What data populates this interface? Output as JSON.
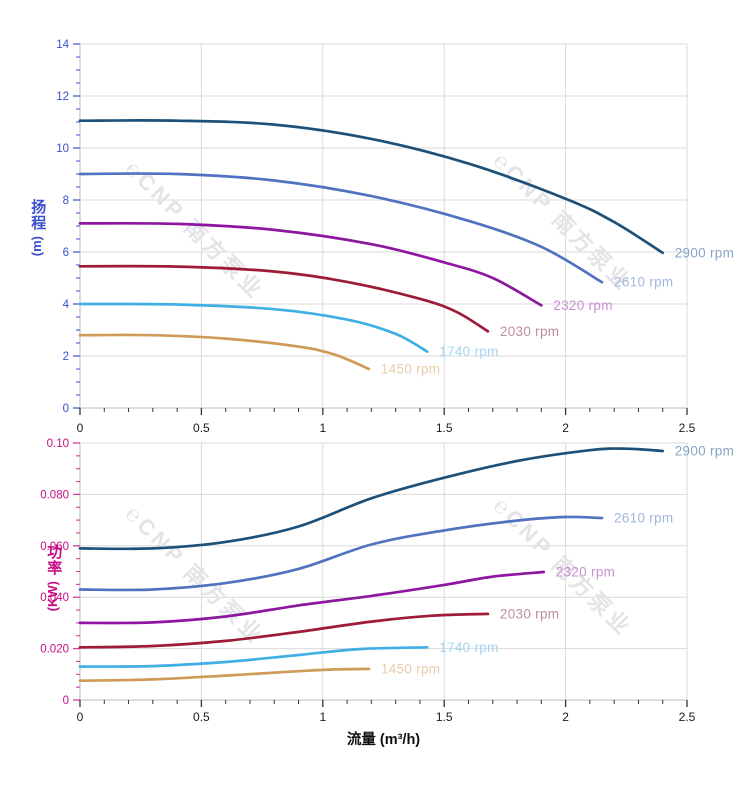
{
  "x_axis_title": "流量 (m³/h)",
  "watermark": {
    "symbol": "℮",
    "text": "CNP 南方泵业",
    "color": "#e4e4e8"
  },
  "chart_data": [
    {
      "type": "line",
      "title": "",
      "ylabel": "扬程",
      "ylabel_unit": "(m)",
      "xlabel": "流量 (m³/h)",
      "x_range": [
        0,
        2.5
      ],
      "y_range": [
        0,
        14
      ],
      "x_major": 0.5,
      "x_minor": 0.1,
      "y_major": 2,
      "y_minor": 0.5,
      "grid": true,
      "legend_position": "line-end-labels",
      "x_tick_labels": [
        "0",
        "0.5",
        "1",
        "1.5",
        "2",
        "2.5"
      ],
      "y_tick_labels": [
        "0",
        "2",
        "4",
        "6",
        "8",
        "10",
        "12",
        "14"
      ],
      "colors": {
        "y_label": "#3b50ce",
        "y_tick": "#4a5ed0",
        "x_label": "#1a1a1a",
        "x_tick": "#333333",
        "grid": "#d9d9d9",
        "spine": "#c6c6c6"
      },
      "series": [
        {
          "name": "2900 rpm",
          "color": "#1d5179",
          "label_color": "#87a5c3",
          "points": [
            [
              0,
              11.05
            ],
            [
              0.4,
              11.05
            ],
            [
              0.8,
              10.9
            ],
            [
              1.2,
              10.35
            ],
            [
              1.6,
              9.4
            ],
            [
              2.0,
              8.05
            ],
            [
              2.2,
              7.15
            ],
            [
              2.4,
              5.97
            ]
          ]
        },
        {
          "name": "2610 rpm",
          "color": "#4f73c0",
          "label_color": "#a3b6de",
          "points": [
            [
              0,
              9.0
            ],
            [
              0.4,
              9.0
            ],
            [
              0.8,
              8.75
            ],
            [
              1.2,
              8.15
            ],
            [
              1.6,
              7.2
            ],
            [
              1.9,
              6.2
            ],
            [
              2.15,
              4.84
            ]
          ]
        },
        {
          "name": "2320 rpm",
          "color": "#8e17a0",
          "label_color": "#c98fd2",
          "points": [
            [
              0,
              7.1
            ],
            [
              0.4,
              7.08
            ],
            [
              0.8,
              6.85
            ],
            [
              1.2,
              6.3
            ],
            [
              1.5,
              5.6
            ],
            [
              1.7,
              5.0
            ],
            [
              1.9,
              3.95
            ]
          ]
        },
        {
          "name": "2030 rpm",
          "color": "#9d1b37",
          "label_color": "#bd8e9b",
          "points": [
            [
              0,
              5.45
            ],
            [
              0.4,
              5.44
            ],
            [
              0.8,
              5.25
            ],
            [
              1.1,
              4.85
            ],
            [
              1.4,
              4.2
            ],
            [
              1.55,
              3.7
            ],
            [
              1.68,
              2.95
            ]
          ]
        },
        {
          "name": "1740 rpm",
          "color": "#3fafe4",
          "label_color": "#a3d6f2",
          "points": [
            [
              0,
              4.0
            ],
            [
              0.4,
              3.98
            ],
            [
              0.8,
              3.8
            ],
            [
              1.1,
              3.4
            ],
            [
              1.3,
              2.85
            ],
            [
              1.43,
              2.17
            ]
          ]
        },
        {
          "name": "1450 rpm",
          "color": "#d09a58",
          "label_color": "#e7cdab",
          "points": [
            [
              0,
              2.8
            ],
            [
              0.3,
              2.8
            ],
            [
              0.6,
              2.67
            ],
            [
              0.9,
              2.36
            ],
            [
              1.05,
              2.05
            ],
            [
              1.19,
              1.5
            ]
          ]
        }
      ]
    },
    {
      "type": "line",
      "title": "",
      "ylabel": "功率",
      "ylabel_unit": "(KW)",
      "xlabel": "流量 (m³/h)",
      "x_range": [
        0,
        2.5
      ],
      "y_range": [
        0,
        0.1
      ],
      "x_major": 0.5,
      "x_minor": 0.1,
      "y_major": 0.02,
      "y_minor": 0.005,
      "grid": true,
      "legend_position": "line-end-labels",
      "x_tick_labels": [
        "0",
        "0.5",
        "1",
        "1.5",
        "2",
        "2.5"
      ],
      "y_tick_labels": [
        "0",
        "0.020",
        "0.040",
        "0.060",
        "0.080",
        "0.10"
      ],
      "colors": {
        "y_label": "#c60d84",
        "y_tick": "#d33a9e",
        "x_label": "#1a1a1a",
        "x_tick": "#333333",
        "grid": "#d9d9d9",
        "spine": "#c6c6c6"
      },
      "series": [
        {
          "name": "2900 rpm",
          "color": "#1d5179",
          "label_color": "#87a5c3",
          "points": [
            [
              0,
              0.059
            ],
            [
              0.3,
              0.059
            ],
            [
              0.6,
              0.0615
            ],
            [
              0.9,
              0.0675
            ],
            [
              1.2,
              0.0785
            ],
            [
              1.5,
              0.0865
            ],
            [
              1.8,
              0.093
            ],
            [
              2.1,
              0.0972
            ],
            [
              2.25,
              0.0978
            ],
            [
              2.4,
              0.0969
            ]
          ]
        },
        {
          "name": "2610 rpm",
          "color": "#4f73c0",
          "label_color": "#a3b6de",
          "points": [
            [
              0,
              0.043
            ],
            [
              0.3,
              0.043
            ],
            [
              0.6,
              0.0455
            ],
            [
              0.9,
              0.051
            ],
            [
              1.2,
              0.0605
            ],
            [
              1.5,
              0.066
            ],
            [
              1.8,
              0.0698
            ],
            [
              2.0,
              0.0712
            ],
            [
              2.15,
              0.0708
            ]
          ]
        },
        {
          "name": "2320 rpm",
          "color": "#8e17a0",
          "label_color": "#c98fd2",
          "points": [
            [
              0,
              0.03
            ],
            [
              0.3,
              0.0302
            ],
            [
              0.6,
              0.0325
            ],
            [
              0.9,
              0.0368
            ],
            [
              1.2,
              0.0405
            ],
            [
              1.5,
              0.0448
            ],
            [
              1.7,
              0.048
            ],
            [
              1.91,
              0.0498
            ]
          ]
        },
        {
          "name": "2030 rpm",
          "color": "#9d1b37",
          "label_color": "#bd8e9b",
          "points": [
            [
              0,
              0.0205
            ],
            [
              0.3,
              0.021
            ],
            [
              0.6,
              0.023
            ],
            [
              0.9,
              0.0265
            ],
            [
              1.2,
              0.0305
            ],
            [
              1.45,
              0.0328
            ],
            [
              1.68,
              0.0335
            ]
          ]
        },
        {
          "name": "1740 rpm",
          "color": "#3fafe4",
          "label_color": "#a3d6f2",
          "points": [
            [
              0,
              0.013
            ],
            [
              0.3,
              0.0132
            ],
            [
              0.6,
              0.0148
            ],
            [
              0.9,
              0.0175
            ],
            [
              1.15,
              0.0198
            ],
            [
              1.43,
              0.0205
            ]
          ]
        },
        {
          "name": "1450 rpm",
          "color": "#d09a58",
          "label_color": "#e7cdab",
          "points": [
            [
              0,
              0.0075
            ],
            [
              0.3,
              0.008
            ],
            [
              0.6,
              0.0095
            ],
            [
              0.9,
              0.0112
            ],
            [
              1.05,
              0.0119
            ],
            [
              1.19,
              0.0121
            ]
          ]
        }
      ]
    }
  ]
}
